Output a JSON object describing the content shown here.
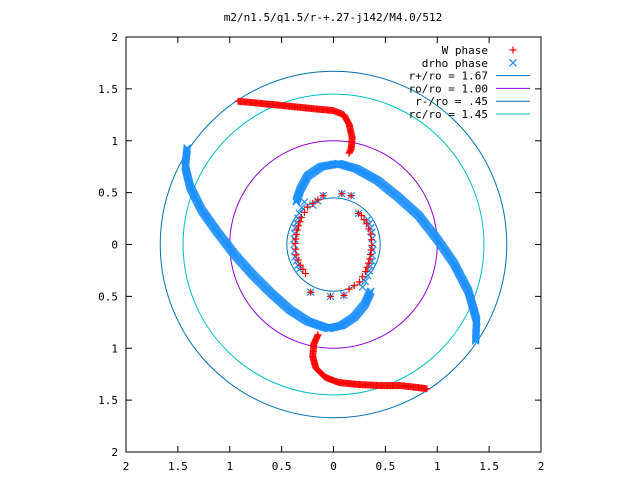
{
  "chart_data": {
    "type": "scatter",
    "title": "m2/n1.5/q1.5/r-+.27-j142/M4.0/512",
    "xlim": [
      -2,
      2
    ],
    "ylim": [
      -2,
      2
    ],
    "x_ticks": [
      {
        "v": -2,
        "label": "2"
      },
      {
        "v": -1.5,
        "label": "1.5"
      },
      {
        "v": -1,
        "label": "1"
      },
      {
        "v": -0.5,
        "label": "0.5"
      },
      {
        "v": 0,
        "label": "0"
      },
      {
        "v": 0.5,
        "label": "0.5"
      },
      {
        "v": 1,
        "label": "1"
      },
      {
        "v": 1.5,
        "label": "1.5"
      },
      {
        "v": 2,
        "label": "2"
      }
    ],
    "y_ticks": [
      {
        "v": 2,
        "label": "2"
      },
      {
        "v": 1.5,
        "label": "1.5"
      },
      {
        "v": 1,
        "label": "1"
      },
      {
        "v": 0.5,
        "label": "0.5"
      },
      {
        "v": 0,
        "label": "0"
      },
      {
        "v": -0.5,
        "label": "0.5"
      },
      {
        "v": -1,
        "label": "1"
      },
      {
        "v": -1.5,
        "label": "1.5"
      },
      {
        "v": -2,
        "label": "2"
      }
    ],
    "grid": false,
    "legend_position": "top-right",
    "circles": [
      {
        "name": "r+/ro = 1.67",
        "radius": 1.67,
        "color": "#0072b2"
      },
      {
        "name": "ro/ro = 1.00",
        "radius": 1.0,
        "color": "#9400d3"
      },
      {
        "name": "r-/ro = .45",
        "radius": 0.45,
        "color": "#0072b2"
      },
      {
        "name": "rc/ro = 1.45",
        "radius": 1.45,
        "color": "#00c0c0"
      }
    ],
    "series": [
      {
        "name": "W phase",
        "marker": "plus",
        "color": "#ff0000",
        "outer_arm_1": [
          [
            -0.92,
            1.38
          ],
          [
            -0.8,
            1.37
          ],
          [
            -0.6,
            1.35
          ],
          [
            -0.4,
            1.33
          ],
          [
            -0.2,
            1.31
          ],
          [
            0.0,
            1.29
          ],
          [
            0.1,
            1.25
          ],
          [
            0.15,
            1.16
          ],
          [
            0.18,
            1.03
          ],
          [
            0.17,
            0.92
          ],
          [
            0.15,
            0.88
          ]
        ],
        "outer_arm_2": [
          [
            -0.15,
            -0.87
          ],
          [
            -0.19,
            -0.96
          ],
          [
            -0.2,
            -1.08
          ],
          [
            -0.17,
            -1.19
          ],
          [
            -0.08,
            -1.28
          ],
          [
            0.05,
            -1.33
          ],
          [
            0.25,
            -1.35
          ],
          [
            0.45,
            -1.36
          ],
          [
            0.65,
            -1.36
          ],
          [
            0.82,
            -1.38
          ],
          [
            0.9,
            -1.39
          ]
        ],
        "inner_arm_1": [
          [
            -0.15,
            0.43
          ],
          [
            -0.25,
            0.36
          ],
          [
            -0.31,
            0.26
          ],
          [
            -0.35,
            0.14
          ],
          [
            -0.37,
            0.01
          ],
          [
            -0.36,
            -0.1
          ],
          [
            -0.32,
            -0.2
          ],
          [
            -0.27,
            -0.28
          ]
        ],
        "inner_arm_2": [
          [
            0.15,
            -0.43
          ],
          [
            0.25,
            -0.36
          ],
          [
            0.31,
            -0.26
          ],
          [
            0.35,
            -0.14
          ],
          [
            0.37,
            -0.01
          ],
          [
            0.36,
            0.1
          ],
          [
            0.32,
            0.2
          ],
          [
            0.27,
            0.28
          ]
        ],
        "isolated": [
          [
            -0.1,
            0.47
          ],
          [
            0.08,
            0.49
          ],
          [
            0.17,
            0.47
          ],
          [
            0.24,
            0.3
          ],
          [
            0.1,
            -0.49
          ],
          [
            -0.03,
            -0.5
          ],
          [
            -0.22,
            -0.46
          ]
        ]
      },
      {
        "name": "drho phase",
        "marker": "cross",
        "color": "#1e90ff",
        "outer_arm_1": [
          [
            -1.41,
            0.93
          ],
          [
            -1.43,
            0.75
          ],
          [
            -1.38,
            0.55
          ],
          [
            -1.27,
            0.33
          ],
          [
            -1.12,
            0.12
          ],
          [
            -0.95,
            -0.1
          ],
          [
            -0.78,
            -0.29
          ],
          [
            -0.6,
            -0.47
          ],
          [
            -0.42,
            -0.63
          ],
          [
            -0.25,
            -0.74
          ],
          [
            -0.05,
            -0.81
          ],
          [
            0.08,
            -0.78
          ],
          [
            0.2,
            -0.7
          ],
          [
            0.3,
            -0.58
          ],
          [
            0.36,
            -0.45
          ]
        ],
        "outer_arm_2": [
          [
            1.37,
            -0.93
          ],
          [
            1.38,
            -0.73
          ],
          [
            1.3,
            -0.45
          ],
          [
            1.16,
            -0.18
          ],
          [
            1.0,
            0.05
          ],
          [
            0.82,
            0.28
          ],
          [
            0.62,
            0.46
          ],
          [
            0.42,
            0.62
          ],
          [
            0.22,
            0.73
          ],
          [
            0.05,
            0.78
          ],
          [
            -0.12,
            0.75
          ],
          [
            -0.25,
            0.66
          ],
          [
            -0.32,
            0.53
          ],
          [
            -0.36,
            0.41
          ]
        ],
        "inner_arm_1": [
          [
            -0.28,
            0.41
          ],
          [
            -0.33,
            0.3
          ],
          [
            -0.37,
            0.16
          ],
          [
            -0.38,
            0.0
          ],
          [
            -0.37,
            -0.12
          ],
          [
            -0.33,
            -0.24
          ]
        ],
        "inner_arm_2": [
          [
            0.28,
            -0.41
          ],
          [
            0.33,
            -0.3
          ],
          [
            0.37,
            -0.16
          ],
          [
            0.38,
            0.0
          ],
          [
            0.37,
            0.12
          ],
          [
            0.33,
            0.24
          ]
        ],
        "isolated": [
          [
            -0.1,
            0.47
          ],
          [
            0.08,
            0.49
          ],
          [
            0.17,
            0.47
          ],
          [
            0.24,
            0.3
          ],
          [
            0.1,
            -0.49
          ],
          [
            -0.03,
            -0.5
          ],
          [
            -0.22,
            -0.46
          ],
          [
            -0.15,
            0.42
          ],
          [
            -0.2,
            0.38
          ]
        ]
      }
    ]
  }
}
